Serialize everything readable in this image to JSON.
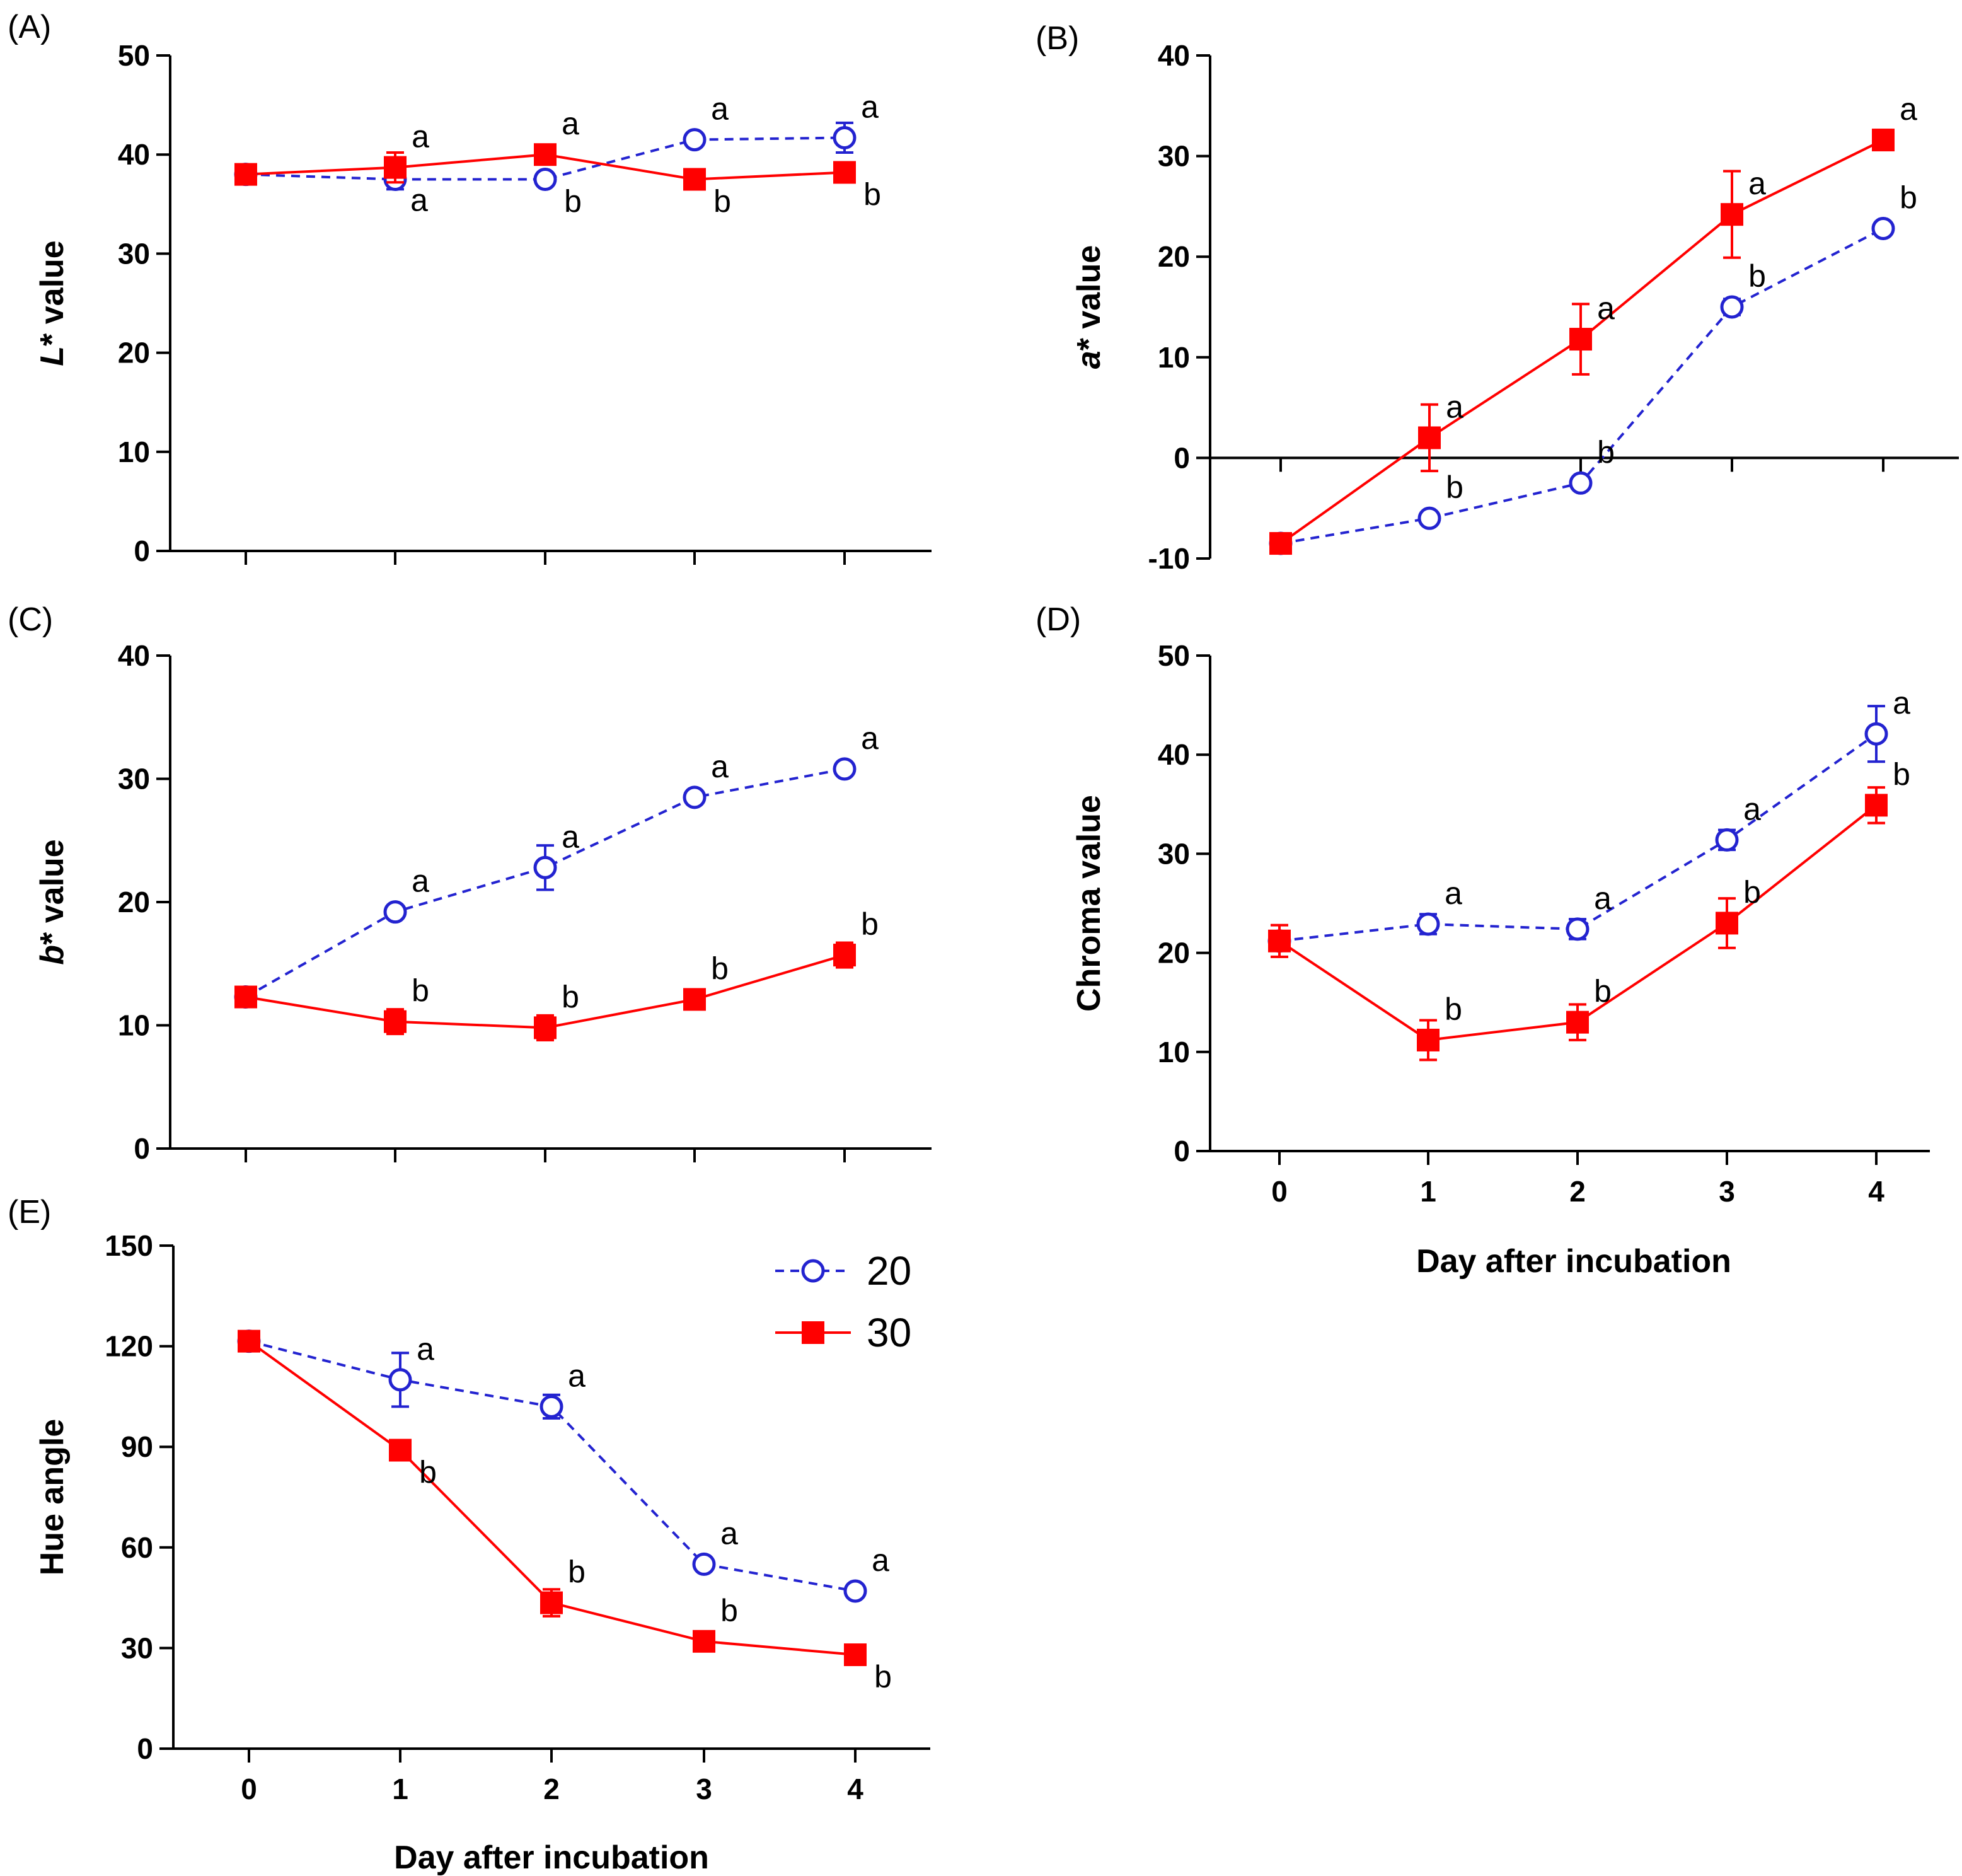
{
  "chart_data": [
    {
      "panel": "(A)",
      "type": "line",
      "ylabel_italic": "L",
      "ylabel_rest": "* value",
      "xlabel": "",
      "x": [
        0,
        1,
        2,
        3,
        4
      ],
      "ylim": [
        0,
        50
      ],
      "yticks": [
        0,
        10,
        20,
        30,
        40,
        50
      ],
      "show_xtick_labels": false,
      "series": [
        {
          "name": "20",
          "style": "open-circle-dashed",
          "values": [
            38,
            37.5,
            37.5,
            41.5,
            41.7
          ],
          "errors": [
            0,
            1,
            0,
            0,
            1.5
          ],
          "letters": [
            {
              "x": 1,
              "text": "a",
              "pos": "below"
            },
            {
              "x": 2,
              "text": "b",
              "pos": "below-right"
            },
            {
              "x": 3,
              "text": "a",
              "pos": "above-right"
            },
            {
              "x": 4,
              "text": "a",
              "pos": "above-right"
            }
          ]
        },
        {
          "name": "30",
          "style": "filled-square-solid",
          "values": [
            38,
            38.7,
            40,
            37.5,
            38.2
          ],
          "errors": [
            0.8,
            1.5,
            0.5,
            0,
            0
          ],
          "letters": [
            {
              "x": 1,
              "text": "a",
              "pos": "above-right"
            },
            {
              "x": 2,
              "text": "a",
              "pos": "above-right"
            },
            {
              "x": 3,
              "text": "b",
              "pos": "below-right"
            },
            {
              "x": 4,
              "text": "b",
              "pos": "below-right"
            }
          ]
        }
      ]
    },
    {
      "panel": "(B)",
      "type": "line",
      "ylabel_italic": "a",
      "ylabel_rest": "* value",
      "xlabel": "",
      "x": [
        0,
        1,
        2,
        3,
        4
      ],
      "ylim": [
        -10,
        40
      ],
      "yticks": [
        -10,
        0,
        10,
        20,
        30,
        40
      ],
      "zero_line": true,
      "show_xtick_labels": false,
      "series": [
        {
          "name": "20",
          "style": "open-circle-dashed",
          "values": [
            -8.5,
            -6,
            -2.5,
            15,
            22.8
          ],
          "errors": [
            0,
            0,
            0,
            0.8,
            0
          ],
          "letters": [
            {
              "x": 1,
              "text": "b",
              "pos": "above-right"
            },
            {
              "x": 2,
              "text": "b",
              "pos": "above-right"
            },
            {
              "x": 3,
              "text": "b",
              "pos": "above-right"
            },
            {
              "x": 4,
              "text": "b",
              "pos": "above-right"
            }
          ]
        },
        {
          "name": "30",
          "style": "filled-square-solid",
          "values": [
            -8.5,
            2,
            11.8,
            24.2,
            31.6
          ],
          "errors": [
            0,
            3.3,
            3.5,
            4.3,
            1
          ],
          "letters": [
            {
              "x": 1,
              "text": "a",
              "pos": "above-right"
            },
            {
              "x": 2,
              "text": "a",
              "pos": "above-right"
            },
            {
              "x": 3,
              "text": "a",
              "pos": "above-right"
            },
            {
              "x": 4,
              "text": "a",
              "pos": "above-right"
            }
          ]
        }
      ]
    },
    {
      "panel": "(C)",
      "type": "line",
      "ylabel_italic": "b",
      "ylabel_rest": "* value",
      "xlabel": "",
      "x": [
        0,
        1,
        2,
        3,
        4
      ],
      "ylim": [
        0,
        40
      ],
      "yticks": [
        0,
        10,
        20,
        30,
        40
      ],
      "show_xtick_labels": false,
      "series": [
        {
          "name": "20",
          "style": "open-circle-dashed",
          "values": [
            12.3,
            19.2,
            22.8,
            28.5,
            30.8
          ],
          "errors": [
            0,
            0,
            1.8,
            0,
            0
          ],
          "letters": [
            {
              "x": 1,
              "text": "a",
              "pos": "above-right"
            },
            {
              "x": 2,
              "text": "a",
              "pos": "above-right"
            },
            {
              "x": 3,
              "text": "a",
              "pos": "above-right"
            },
            {
              "x": 4,
              "text": "a",
              "pos": "above-right"
            }
          ]
        },
        {
          "name": "30",
          "style": "filled-square-solid",
          "values": [
            12.3,
            10.3,
            9.8,
            12.1,
            15.7
          ],
          "errors": [
            0,
            1,
            1,
            0,
            1
          ],
          "letters": [
            {
              "x": 1,
              "text": "b",
              "pos": "above-right"
            },
            {
              "x": 2,
              "text": "b",
              "pos": "above-right"
            },
            {
              "x": 3,
              "text": "b",
              "pos": "above-right"
            },
            {
              "x": 4,
              "text": "b",
              "pos": "above-right"
            }
          ]
        }
      ]
    },
    {
      "panel": "(D)",
      "type": "line",
      "ylabel_italic": "",
      "ylabel_rest": "Chroma value",
      "xlabel": "Day after incubation",
      "x": [
        0,
        1,
        2,
        3,
        4
      ],
      "ylim": [
        0,
        50
      ],
      "yticks": [
        0,
        10,
        20,
        30,
        40,
        50
      ],
      "show_xtick_labels": true,
      "series": [
        {
          "name": "20",
          "style": "open-circle-dashed",
          "values": [
            21.2,
            22.9,
            22.4,
            31.4,
            42.1
          ],
          "errors": [
            0,
            1,
            1,
            1,
            2.8
          ],
          "letters": [
            {
              "x": 1,
              "text": "a",
              "pos": "above-right"
            },
            {
              "x": 2,
              "text": "a",
              "pos": "above-right"
            },
            {
              "x": 3,
              "text": "a",
              "pos": "above-right"
            },
            {
              "x": 4,
              "text": "a",
              "pos": "above-right"
            }
          ]
        },
        {
          "name": "30",
          "style": "filled-square-solid",
          "values": [
            21.2,
            11.2,
            13,
            23,
            34.9
          ],
          "errors": [
            1.6,
            2,
            1.8,
            2.5,
            1.8
          ],
          "letters": [
            {
              "x": 1,
              "text": "b",
              "pos": "above-right"
            },
            {
              "x": 2,
              "text": "b",
              "pos": "above-right"
            },
            {
              "x": 3,
              "text": "b",
              "pos": "above-right"
            },
            {
              "x": 4,
              "text": "b",
              "pos": "above-right"
            }
          ]
        }
      ]
    },
    {
      "panel": "(E)",
      "type": "line",
      "ylabel_italic": "",
      "ylabel_rest": "Hue angle",
      "xlabel": "Day after incubation",
      "x": [
        0,
        1,
        2,
        3,
        4
      ],
      "ylim": [
        0,
        150
      ],
      "yticks": [
        0,
        30,
        60,
        90,
        120,
        150
      ],
      "show_xtick_labels": true,
      "legend": true,
      "series": [
        {
          "name": "20",
          "style": "open-circle-dashed",
          "values": [
            121.5,
            110,
            102,
            55,
            47
          ],
          "errors": [
            0,
            8,
            3.5,
            0,
            0
          ],
          "letters": [
            {
              "x": 1,
              "text": "a",
              "pos": "above-right"
            },
            {
              "x": 2,
              "text": "a",
              "pos": "above-right"
            },
            {
              "x": 3,
              "text": "a",
              "pos": "above-right"
            },
            {
              "x": 4,
              "text": "a",
              "pos": "above-right"
            }
          ]
        },
        {
          "name": "30",
          "style": "filled-square-solid",
          "values": [
            121.5,
            89,
            43.5,
            32,
            28
          ],
          "errors": [
            2,
            0,
            4,
            0,
            0
          ],
          "letters": [
            {
              "x": 1,
              "text": "b",
              "pos": "below-right"
            },
            {
              "x": 2,
              "text": "b",
              "pos": "above-right"
            },
            {
              "x": 3,
              "text": "b",
              "pos": "above-right"
            },
            {
              "x": 4,
              "text": "b",
              "pos": "below-right"
            }
          ]
        }
      ]
    }
  ],
  "colors": {
    "series_20": "#2323d0",
    "series_30": "#ff0000",
    "axis": "#000000"
  }
}
